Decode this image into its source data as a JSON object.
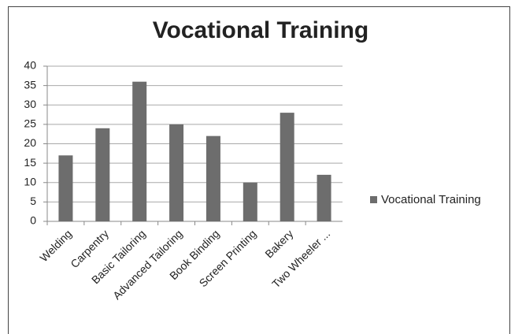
{
  "chart_data": {
    "type": "bar",
    "title": "Vocational Training",
    "categories": [
      "Welding",
      "Carpentry",
      "Basic Tailoring",
      "Advanced Tailoring",
      "Book Binding",
      "Screen Printing",
      "Bakery",
      "Two Wheeler ..."
    ],
    "series": [
      {
        "name": "Vocational Training",
        "color": "#6d6d6d",
        "values": [
          17,
          24,
          36,
          25,
          22,
          10,
          28,
          12
        ]
      }
    ],
    "ylim": [
      0,
      40
    ],
    "yticks": [
      0,
      5,
      10,
      15,
      20,
      25,
      30,
      35,
      40
    ],
    "grid": true,
    "legend": "right"
  }
}
